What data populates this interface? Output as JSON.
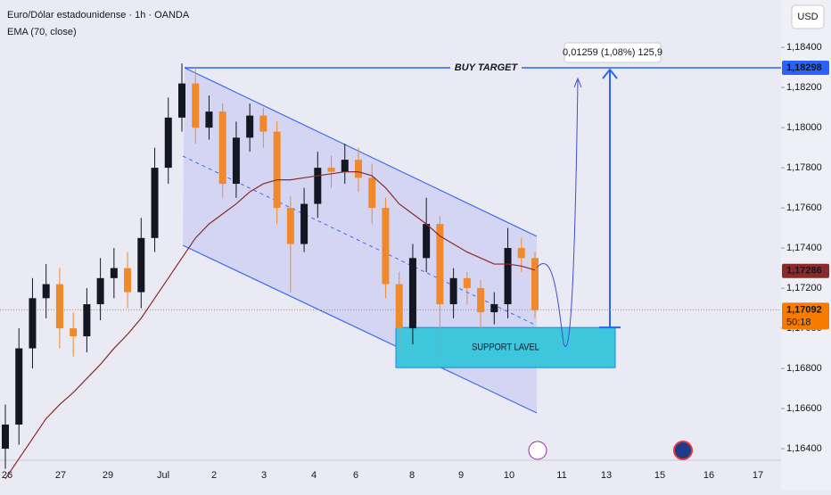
{
  "chart_data": {
    "type": "candlestick",
    "title": "Euro/Dólar estadounidense · 1h · OANDA",
    "indicator": "EMA (70, close)",
    "currency": "USD",
    "x_labels": [
      "26",
      "27",
      "29",
      "Jul",
      "2",
      "3",
      "4",
      "6",
      "8",
      "9",
      "10",
      "11",
      "13",
      "15",
      "16",
      "17"
    ],
    "open": [
      1.164,
      1.1652,
      1.169,
      1.1715,
      1.1722,
      1.17,
      1.1696,
      1.1712,
      1.1725,
      1.173,
      1.1718,
      1.1745,
      1.178,
      1.1805,
      1.1822,
      1.18,
      1.1808,
      1.1772,
      1.1795,
      1.1806,
      1.1798,
      1.176,
      1.1742,
      1.1762,
      1.178,
      1.1778,
      1.1784,
      1.1775,
      1.176,
      1.1722,
      1.17,
      1.1735,
      1.1752,
      1.1712,
      1.1725,
      1.172,
      1.1708,
      1.1712,
      1.174,
      1.1735
    ],
    "high": [
      1.1662,
      1.17,
      1.1725,
      1.1732,
      1.173,
      1.1708,
      1.172,
      1.1735,
      1.174,
      1.1738,
      1.1755,
      1.179,
      1.1815,
      1.1832,
      1.183,
      1.1816,
      1.1812,
      1.1803,
      1.1812,
      1.181,
      1.1803,
      1.1766,
      1.177,
      1.1788,
      1.1786,
      1.1792,
      1.179,
      1.1782,
      1.1765,
      1.1728,
      1.1742,
      1.1765,
      1.1756,
      1.173,
      1.1728,
      1.1724,
      1.1718,
      1.175,
      1.1745,
      1.1738
    ],
    "low": [
      1.163,
      1.1642,
      1.168,
      1.1705,
      1.169,
      1.1686,
      1.1688,
      1.1704,
      1.1715,
      1.171,
      1.171,
      1.1738,
      1.1772,
      1.1798,
      1.1792,
      1.1794,
      1.1765,
      1.1765,
      1.1788,
      1.179,
      1.1752,
      1.1718,
      1.1738,
      1.1755,
      1.177,
      1.1772,
      1.1768,
      1.1752,
      1.1715,
      1.1688,
      1.1692,
      1.1728,
      1.1685,
      1.1705,
      1.1712,
      1.17,
      1.1702,
      1.1705,
      1.1728,
      1.1705
    ],
    "close": [
      1.1652,
      1.169,
      1.1715,
      1.1722,
      1.17,
      1.1696,
      1.1712,
      1.1725,
      1.173,
      1.1718,
      1.1745,
      1.178,
      1.1805,
      1.1822,
      1.18,
      1.1808,
      1.1772,
      1.1795,
      1.1806,
      1.1798,
      1.176,
      1.1742,
      1.1762,
      1.178,
      1.1778,
      1.1784,
      1.1775,
      1.176,
      1.1722,
      1.17,
      1.1735,
      1.1752,
      1.1712,
      1.1725,
      1.172,
      1.1708,
      1.1712,
      1.174,
      1.1735,
      1.1709
    ],
    "ema": [
      1.1625,
      1.1635,
      1.1645,
      1.1655,
      1.1662,
      1.1668,
      1.1675,
      1.1682,
      1.169,
      1.1697,
      1.1705,
      1.1715,
      1.1725,
      1.1735,
      1.1745,
      1.1752,
      1.1757,
      1.1762,
      1.1768,
      1.1772,
      1.1774,
      1.1774,
      1.1775,
      1.1776,
      1.1777,
      1.1778,
      1.1778,
      1.1776,
      1.177,
      1.1762,
      1.1757,
      1.1752,
      1.1746,
      1.1742,
      1.1738,
      1.1735,
      1.1732,
      1.1732,
      1.1731,
      1.1729
    ],
    "up_color": "#131722",
    "down_color": "#f0892c",
    "ema_color": "#8b2a2a",
    "ylim": [
      1.16347,
      1.18636
    ],
    "yticks": [
      {
        "value": 1.164,
        "label": "1,16400"
      },
      {
        "value": 1.166,
        "label": "1,16600"
      },
      {
        "value": 1.168,
        "label": "1,16800"
      },
      {
        "value": 1.17,
        "label": "1,17000"
      },
      {
        "value": 1.172,
        "label": "1,17200"
      },
      {
        "value": 1.174,
        "label": "1,17400"
      },
      {
        "value": 1.176,
        "label": "1,17600"
      },
      {
        "value": 1.178,
        "label": "1,17800"
      },
      {
        "value": 1.18,
        "label": "1,18000"
      },
      {
        "value": 1.182,
        "label": "1,18200"
      },
      {
        "value": 1.184,
        "label": "1,18400"
      }
    ],
    "price_markers": [
      {
        "value": 1.18298,
        "label": "1,18298",
        "color": "#2962ff"
      },
      {
        "value": 1.17286,
        "label": "1,17286",
        "color": "#8b2a2a"
      },
      {
        "value": 1.17092,
        "label": "1,17092",
        "color": "#f57c00",
        "countdown": "50:18"
      }
    ],
    "buy_target": "BUY TARGET",
    "measure_label": "0,01259 (1,08%) 125,9",
    "support": {
      "label": "SUPPORT LAVEL",
      "top": 1.17004,
      "bottom": 1.16804
    }
  }
}
